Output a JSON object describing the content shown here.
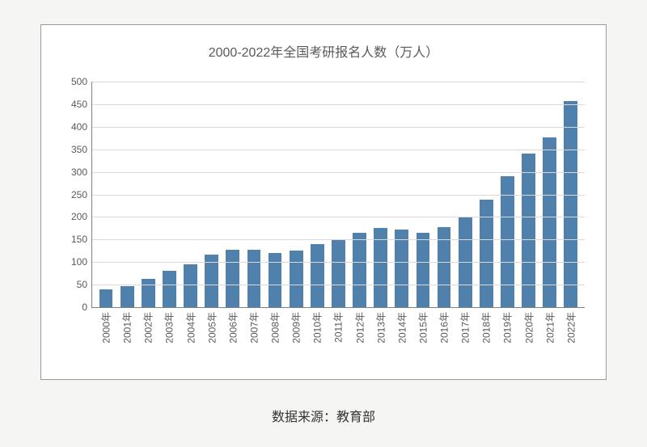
{
  "chart": {
    "type": "bar",
    "title": "2000-2022年全国考研报名人数（万人）",
    "title_fontsize": 16,
    "title_color": "#595959",
    "background_color": "#ffffff",
    "card_border_color": "#9a9a9a",
    "page_background": "#f5f5f3",
    "grid_color": "#d9d9d9",
    "axis_color": "#808080",
    "bar_color": "#4f81ac",
    "bar_width": 0.64,
    "label_fontsize": 12,
    "label_color": "#595959",
    "ylim": [
      0,
      500
    ],
    "ytick_step": 50,
    "categories": [
      "2000年",
      "2001年",
      "2002年",
      "2003年",
      "2004年",
      "2005年",
      "2006年",
      "2007年",
      "2008年",
      "2009年",
      "2010年",
      "2011年",
      "2012年",
      "2013年",
      "2014年",
      "2015年",
      "2016年",
      "2017年",
      "2018年",
      "2019年",
      "2020年",
      "2021年",
      "2022年"
    ],
    "values": [
      39,
      46,
      62,
      80,
      95,
      117,
      127,
      128,
      120,
      125,
      140,
      150,
      165,
      176,
      172,
      165,
      177,
      201,
      238,
      290,
      341,
      377,
      457
    ]
  },
  "source": "数据来源：教育部",
  "source_fontsize": 16,
  "source_color": "#333333"
}
